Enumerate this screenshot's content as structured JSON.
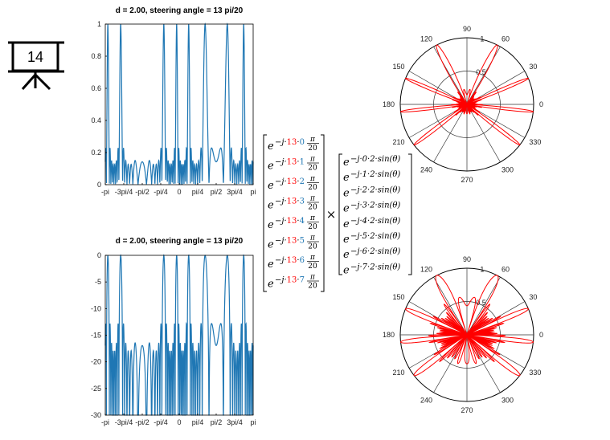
{
  "slide_icon": {
    "icon": "presentation-board-icon",
    "number": "14"
  },
  "chart_data": [
    {
      "type": "line",
      "title": "d = 2.00, steering angle  = 13 pi/20",
      "xtick_labels": [
        "-pi",
        "-3pi/4",
        "-pi/2",
        "-pi/4",
        "0",
        "pi/4",
        "pi/2",
        "3pi/4",
        "pi"
      ],
      "ytick_labels": [
        "0",
        "0.2",
        "0.4",
        "0.6",
        "0.8",
        "1"
      ],
      "xlim": [
        -3.1416,
        3.1416
      ],
      "ylim": [
        0,
        1
      ],
      "line_color": "#1f77b4",
      "series": [
        {
          "function": "|sum exp(-j*2*pi*d*n*(sin(x)-sin(13pi/20)))|/8, n=0..7",
          "elements": 8,
          "spacing_d": 2.0,
          "steering": 2.042
        }
      ]
    },
    {
      "type": "line",
      "title": "d = 2.00, steering angle  = 13 pi/20",
      "xtick_labels": [
        "-pi",
        "-3pi/4",
        "-pi/2",
        "-pi/4",
        "0",
        "pi/4",
        "pi/2",
        "3pi/4",
        "pi"
      ],
      "ytick_labels": [
        "0",
        "-5",
        "-10",
        "-15",
        "-20",
        "-25",
        "-30"
      ],
      "xlim": [
        -3.1416,
        3.1416
      ],
      "ylim": [
        -30,
        0
      ],
      "line_color": "#1f77b4",
      "series": [
        {
          "function": "20*log10 of the array factor above",
          "elements": 8,
          "spacing_d": 2.0,
          "steering": 2.042
        }
      ]
    },
    {
      "type": "polar",
      "angle_labels": [
        "90",
        "60",
        "30",
        "0",
        "330",
        "300",
        "270",
        "240",
        "210",
        "180",
        "150",
        "120"
      ],
      "radial_labels": [
        "0.5",
        "1"
      ],
      "line_color": "#ff0000",
      "scale": "linear"
    },
    {
      "type": "polar",
      "angle_labels": [
        "90",
        "60",
        "30",
        "0",
        "330",
        "300",
        "270",
        "240",
        "210",
        "180",
        "150",
        "120"
      ],
      "radial_labels": [
        "0.5",
        "1"
      ],
      "line_color": "#ff0000",
      "scale": "dB"
    }
  ],
  "equation": {
    "steering_terms": [
      {
        "e": "e",
        "exp": "−j·",
        "k": "13",
        "n": "0",
        "pi": "π",
        "den": "20"
      },
      {
        "e": "e",
        "exp": "−j·",
        "k": "13",
        "n": "1",
        "pi": "π",
        "den": "20"
      },
      {
        "e": "e",
        "exp": "−j·",
        "k": "13",
        "n": "2",
        "pi": "π",
        "den": "20"
      },
      {
        "e": "e",
        "exp": "−j·",
        "k": "13",
        "n": "3",
        "pi": "π",
        "den": "20"
      },
      {
        "e": "e",
        "exp": "−j·",
        "k": "13",
        "n": "4",
        "pi": "π",
        "den": "20"
      },
      {
        "e": "e",
        "exp": "−j·",
        "k": "13",
        "n": "5",
        "pi": "π",
        "den": "20"
      },
      {
        "e": "e",
        "exp": "−j·",
        "k": "13",
        "n": "6",
        "pi": "π",
        "den": "20"
      },
      {
        "e": "e",
        "exp": "−j·",
        "k": "13",
        "n": "7",
        "pi": "π",
        "den": "20"
      }
    ],
    "times": "×",
    "array_terms": [
      "e−j·0·2·sin(θ)",
      "e−j·1·2·sin(θ)",
      "e−j·2·2·sin(θ)",
      "e−j·3·2·sin(θ)",
      "e−j·4·2·sin(θ)",
      "e−j·5·2·sin(θ)",
      "e−j·6·2·sin(θ)",
      "e−j·7·2·sin(θ)"
    ],
    "array_parts": [
      {
        "e": "e",
        "exp": "−j·0·2·sin(θ)"
      },
      {
        "e": "e",
        "exp": "−j·1·2·sin(θ)"
      },
      {
        "e": "e",
        "exp": "−j·2·2·sin(θ)"
      },
      {
        "e": "e",
        "exp": "−j·3·2·sin(θ)"
      },
      {
        "e": "e",
        "exp": "−j·4·2·sin(θ)"
      },
      {
        "e": "e",
        "exp": "−j·5·2·sin(θ)"
      },
      {
        "e": "e",
        "exp": "−j·6·2·sin(θ)"
      },
      {
        "e": "e",
        "exp": "−j·7·2·sin(θ)"
      }
    ],
    "colors": {
      "highlight": "#ff0000",
      "index": "#1f77b4"
    }
  }
}
